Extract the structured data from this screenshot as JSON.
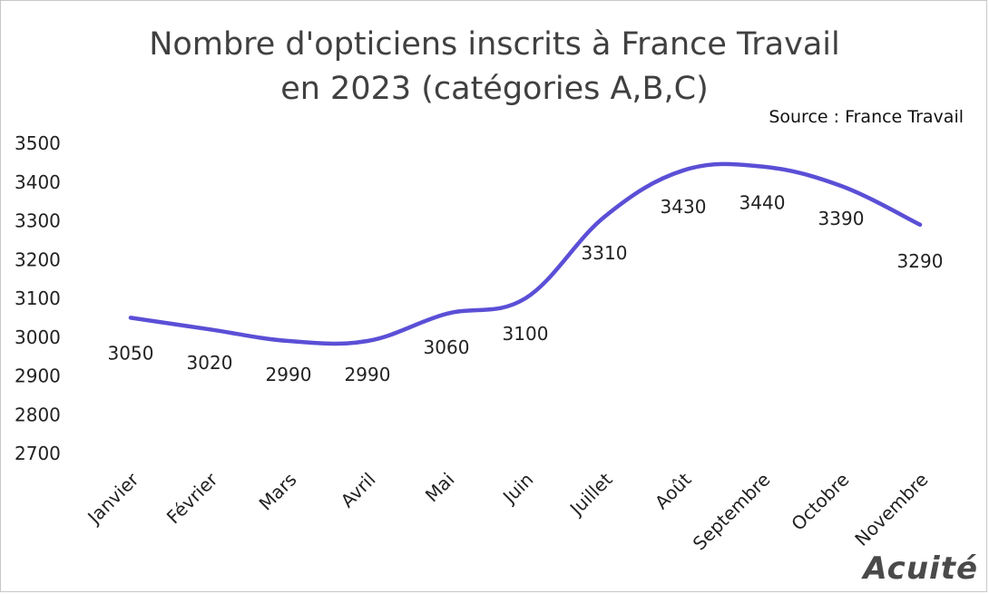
{
  "title_line1": "Nombre d'opticiens inscrits à France Travail",
  "title_line2": "en 2023 (catégories A,B,C)",
  "source": "Source : France Travail",
  "logo": "Acuité",
  "colors": {
    "line": "#5b4fd6",
    "text": "#222222",
    "title": "#404040"
  },
  "chart_data": {
    "type": "line",
    "title": "Nombre d'opticiens inscrits à France Travail en 2023 (catégories A,B,C)",
    "categories": [
      "Janvier",
      "Février",
      "Mars",
      "Avril",
      "Mai",
      "Juin",
      "Juillet",
      "Août",
      "Septembre",
      "Octobre",
      "Novembre"
    ],
    "series": [
      {
        "values": [
          3050,
          3020,
          2990,
          2990,
          3060,
          3100,
          3310,
          3430,
          3440,
          3390,
          3290
        ]
      }
    ],
    "data_labels": [
      "3050",
      "3020",
      "2990",
      "2990",
      "3060",
      "3100",
      "3310",
      "3430",
      "3440",
      "3390",
      "3290"
    ],
    "yticks": [
      "2700",
      "2800",
      "2900",
      "3000",
      "3100",
      "3200",
      "3300",
      "3400",
      "3500"
    ],
    "ylim": [
      2700,
      3500
    ],
    "grid": false,
    "legend": "none"
  }
}
